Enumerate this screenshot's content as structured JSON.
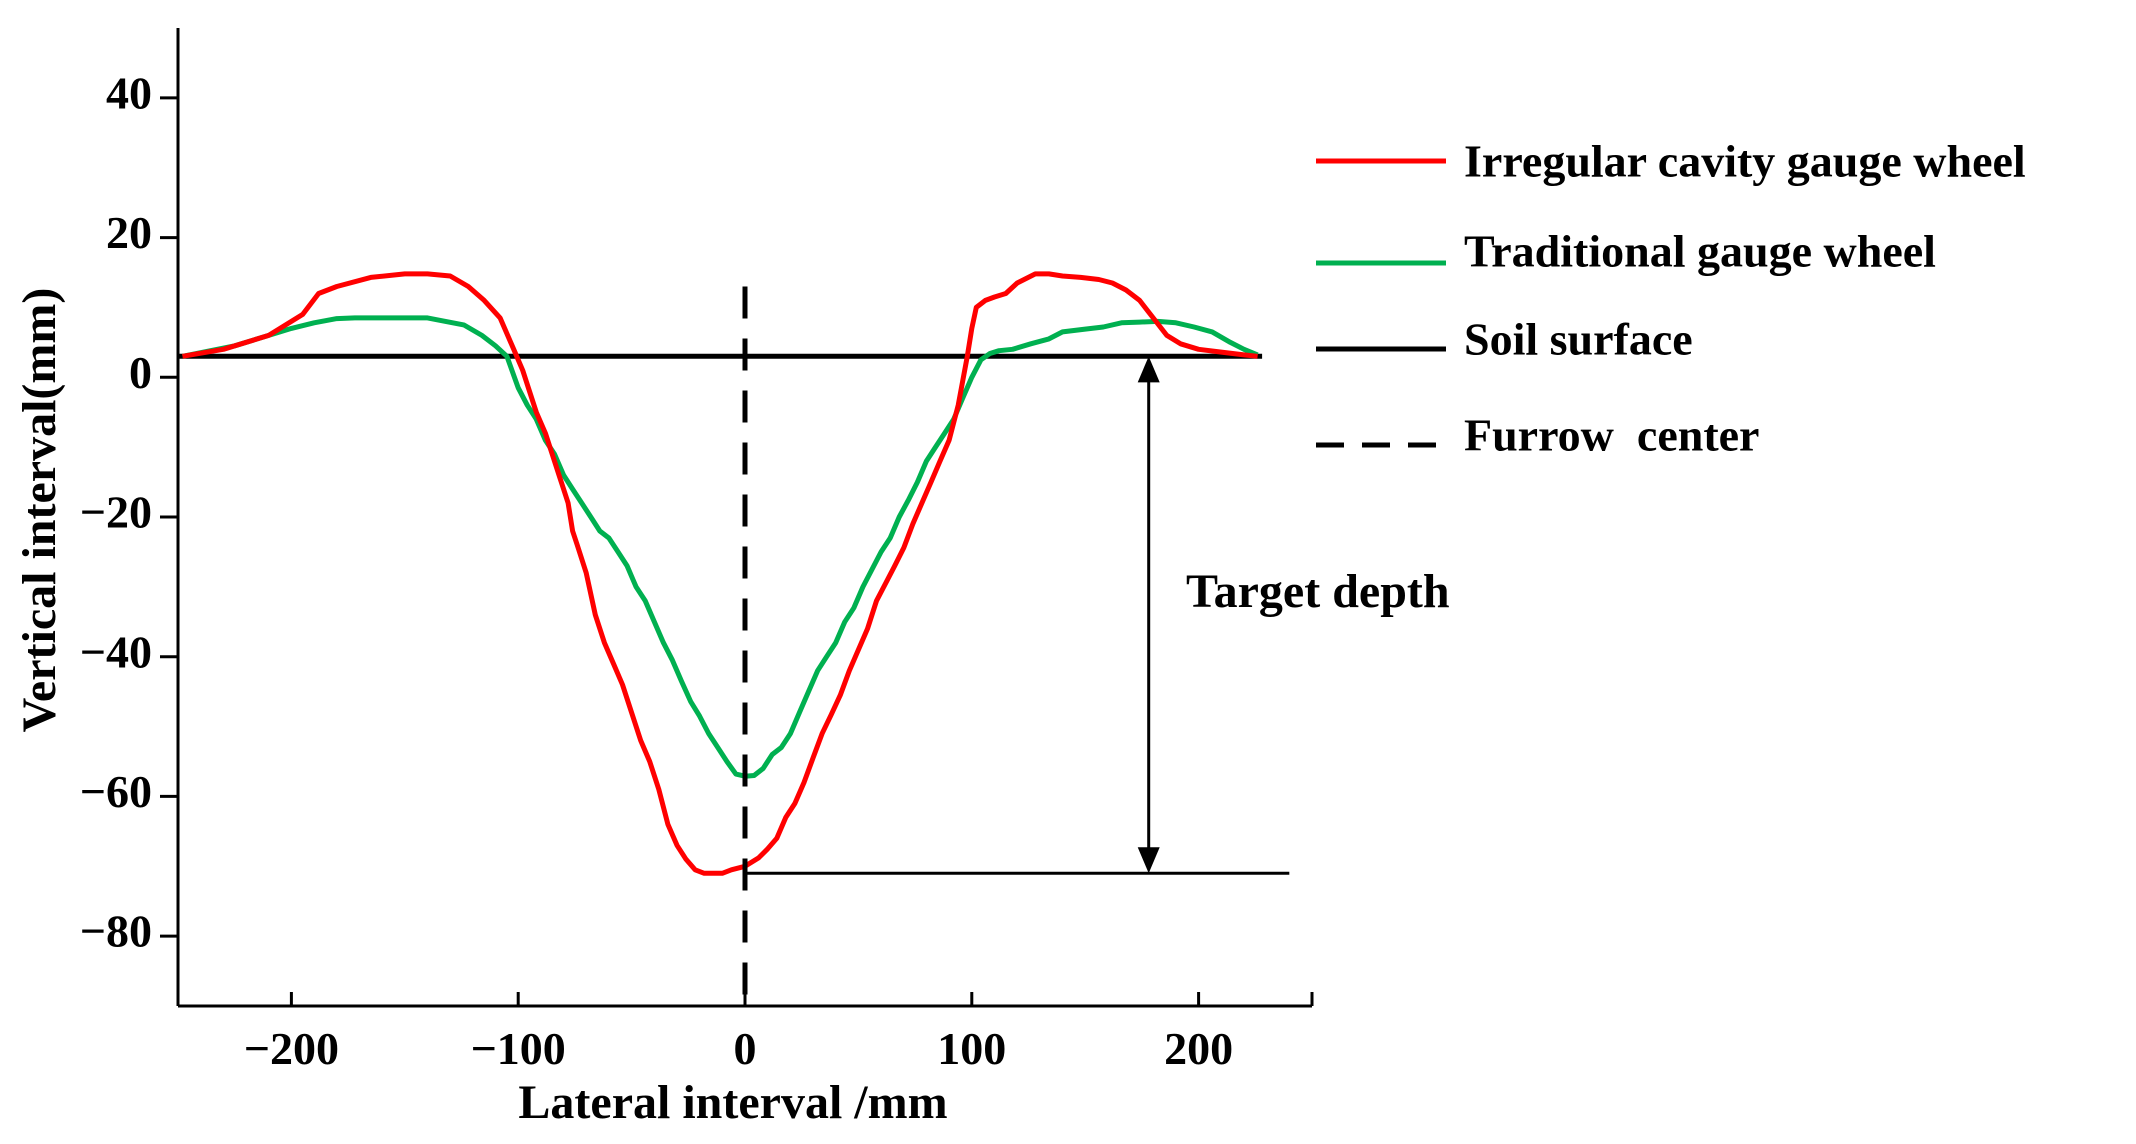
{
  "chart_data": {
    "type": "line",
    "title": "",
    "xlabel": "Lateral interval /mm",
    "ylabel": "Vertical interval(mm)",
    "xlim": [
      -250,
      250
    ],
    "ylim": [
      -90,
      50
    ],
    "xticks": [
      -200,
      -100,
      0,
      100,
      200
    ],
    "yticks": [
      40,
      20,
      0,
      -20,
      -40,
      -60,
      -80
    ],
    "xtick_labels": [
      "−200",
      "−100",
      "0",
      "100",
      "200"
    ],
    "ytick_labels": [
      "40",
      "20",
      "0",
      "−20",
      "−40",
      "−60",
      "−80"
    ],
    "grid": false,
    "legend_position": "right",
    "series": [
      {
        "name": "Irregular cavity gauge wheel",
        "color": "#ff0000",
        "x": [
          -248,
          -230,
          -210,
          -195,
          -188,
          -180,
          -165,
          -150,
          -140,
          -130,
          -122,
          -115,
          -108,
          -102,
          -98,
          -95,
          -92,
          -88,
          -85,
          -82,
          -80,
          -78,
          -76,
          -74,
          -70,
          -66,
          -62,
          -58,
          -54,
          -50,
          -46,
          -42,
          -38,
          -34,
          -30,
          -26,
          -22,
          -18,
          -14,
          -10,
          -6,
          0,
          6,
          10,
          14,
          18,
          22,
          26,
          30,
          34,
          38,
          42,
          46,
          50,
          54,
          58,
          62,
          66,
          70,
          74,
          78,
          82,
          86,
          90,
          94,
          98,
          100,
          102,
          106,
          110,
          115,
          120,
          128,
          134,
          140,
          148,
          156,
          162,
          168,
          174,
          180,
          186,
          192,
          200,
          210,
          220,
          226
        ],
        "y": [
          3,
          4,
          6,
          9,
          12,
          13,
          14.3,
          14.8,
          14.8,
          14.5,
          13,
          11,
          8.5,
          4,
          1,
          -2,
          -5,
          -8,
          -11,
          -14,
          -16,
          -18,
          -22,
          -24,
          -28,
          -34,
          -38,
          -41,
          -44,
          -48,
          -52,
          -55,
          -59,
          -64,
          -67,
          -69,
          -70.5,
          -71,
          -71,
          -71,
          -70.5,
          -70,
          -68.8,
          -67.5,
          -66,
          -63,
          -61,
          -58,
          -54.5,
          -51,
          -48.3,
          -45.5,
          -42,
          -39,
          -36,
          -32,
          -29.5,
          -27,
          -24.4,
          -21,
          -18,
          -15,
          -12,
          -9,
          -4,
          3,
          7,
          10,
          11,
          11.5,
          12,
          13.5,
          14.8,
          14.8,
          14.5,
          14.3,
          14,
          13.5,
          12.5,
          11,
          8.5,
          6,
          4.8,
          4,
          3.6,
          3.2,
          3
        ]
      },
      {
        "name": "Traditional gauge wheel",
        "color": "#00b050",
        "x": [
          -248,
          -225,
          -210,
          -200,
          -190,
          -180,
          -172,
          -160,
          -150,
          -140,
          -132,
          -124,
          -116,
          -110,
          -105,
          -100,
          -96,
          -92,
          -88,
          -84,
          -80,
          -76,
          -72,
          -68,
          -64,
          -60,
          -56,
          -52,
          -48,
          -44,
          -40,
          -36,
          -32,
          -28,
          -24,
          -20,
          -16,
          -12,
          -8,
          -4,
          0,
          4,
          8,
          12,
          16,
          20,
          24,
          28,
          32,
          36,
          40,
          44,
          48,
          52,
          56,
          60,
          64,
          68,
          72,
          76,
          80,
          84,
          88,
          92,
          96,
          100,
          104,
          108,
          112,
          118,
          126,
          134,
          140,
          150,
          158,
          166,
          174,
          182,
          190,
          198,
          206,
          214,
          220,
          226
        ],
        "y": [
          3,
          4.5,
          6,
          7,
          7.8,
          8.4,
          8.5,
          8.5,
          8.5,
          8.5,
          8,
          7.5,
          6,
          4.5,
          3,
          -1.5,
          -4,
          -6,
          -9,
          -11,
          -14,
          -16,
          -18,
          -20,
          -22,
          -23,
          -25,
          -27,
          -30,
          -32,
          -35,
          -38,
          -40.5,
          -43.5,
          -46.4,
          -48.5,
          -51,
          -53,
          -55,
          -56.8,
          -57.1,
          -57,
          -56,
          -54,
          -53,
          -51,
          -48,
          -45,
          -42,
          -40,
          -38,
          -35,
          -33,
          -30,
          -27.5,
          -25,
          -23,
          -20,
          -17.6,
          -15,
          -12,
          -10,
          -8,
          -6,
          -3,
          0,
          2.5,
          3.4,
          3.8,
          4,
          4.8,
          5.5,
          6.5,
          6.9,
          7.2,
          7.8,
          7.9,
          8,
          7.8,
          7.2,
          6.5,
          5,
          4,
          3.2
        ]
      },
      {
        "name": "Soil surface",
        "color": "#000000",
        "style": "solid",
        "x": [
          -250,
          228
        ],
        "y": [
          3,
          3
        ]
      },
      {
        "name": "Furrow  center",
        "color": "#000000",
        "style": "dashed",
        "x": [
          0,
          0
        ],
        "y": [
          13,
          -90
        ]
      }
    ],
    "annotations": {
      "target_depth_label": "Target depth",
      "target_depth_x": 178,
      "surface_y": 3,
      "bottom_y": -71,
      "bottom_line_x": [
        0,
        240
      ]
    }
  }
}
